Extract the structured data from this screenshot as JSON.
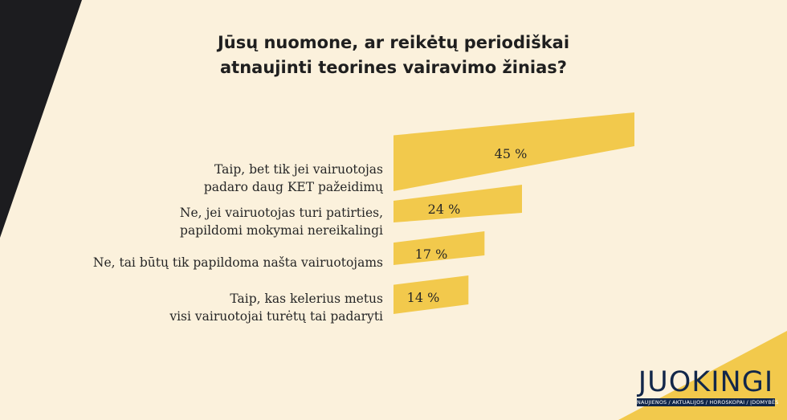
{
  "title": "Jūsų nuomone, ar reikėtų periodiškai\natnaujinti teorines vairavimo žinias?",
  "colors": {
    "background": "#fbf1dc",
    "bar": "#f2c94c",
    "dark_wedge": "#1c1c1f",
    "logo": "#12274a"
  },
  "chart_data": {
    "type": "bar",
    "orientation": "horizontal",
    "title": "Jūsų nuomone, ar reikėtų periodiškai\natnaujinti teorines vairavimo žinias?",
    "categories": [
      [
        "Taip, bet tik jei vairuotojas",
        "padaro daug KET pažeidimų"
      ],
      [
        "Ne, jei vairuotojas turi patirties,",
        "papildomi mokymai nereikalingi"
      ],
      [
        "Ne, tai būtų tik papildoma našta vairuotojams"
      ],
      [
        "Taip, kas kelerius metus",
        "visi vairuotojai turėtų tai padaryti"
      ]
    ],
    "values": [
      45,
      24,
      17,
      14
    ],
    "value_labels": [
      "45 %",
      "24 %",
      "17 %",
      "14 %"
    ],
    "unit": "%",
    "xlim": [
      0,
      45
    ],
    "grid": false,
    "legend": "none"
  },
  "logo": {
    "word": "JUOKINGI",
    "tagline": "NAUJIENOS / AKTUALIJOS / HOROSKOPAI / ĮDOMYBĖS"
  }
}
